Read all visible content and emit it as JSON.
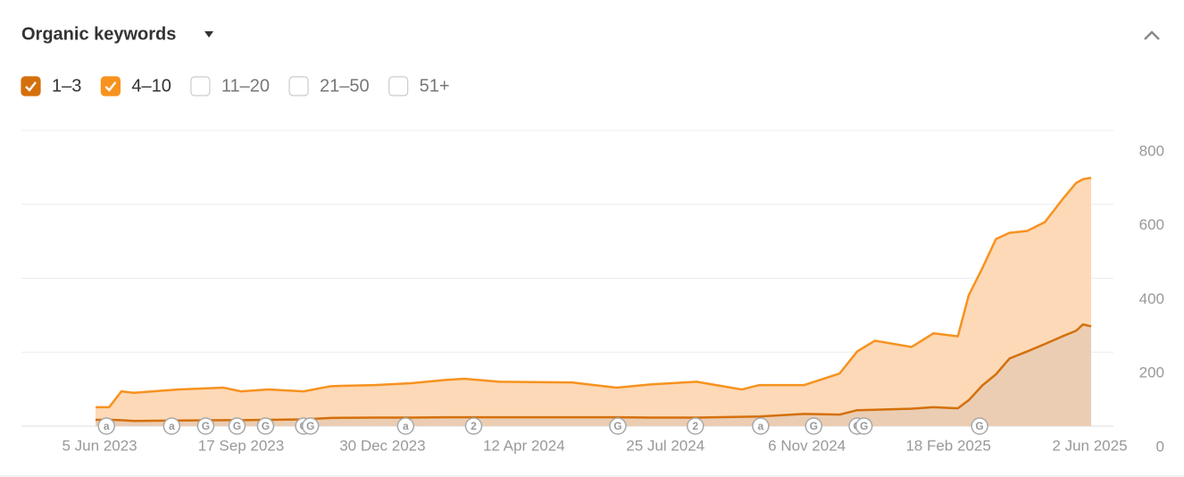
{
  "chart_data": {
    "type": "stacked_area",
    "title": "Organic keywords",
    "x": [
      "2023-06-02",
      "2023-06-12",
      "2023-06-21",
      "2023-06-30",
      "2023-08-02",
      "2023-09-04",
      "2023-09-17",
      "2023-10-07",
      "2023-11-02",
      "2023-11-22",
      "2023-12-24",
      "2024-01-20",
      "2024-02-15",
      "2024-02-28",
      "2024-03-25",
      "2024-05-17",
      "2024-06-19",
      "2024-07-15",
      "2024-08-17",
      "2024-09-19",
      "2024-10-02",
      "2024-11-04",
      "2024-11-30",
      "2024-12-13",
      "2024-12-26",
      "2025-01-22",
      "2025-02-07",
      "2025-02-25",
      "2025-03-05",
      "2025-03-15",
      "2025-03-25",
      "2025-04-04",
      "2025-04-17",
      "2025-04-30",
      "2025-05-13",
      "2025-05-23",
      "2025-05-28",
      "2025-06-03"
    ],
    "series": [
      {
        "name": "1–3",
        "color": "#d4700c",
        "fill": "#ebcdb3",
        "values": [
          17,
          17,
          16,
          14,
          15,
          16,
          16,
          17,
          18,
          22,
          23,
          23,
          24,
          24,
          24,
          24,
          24,
          23,
          23,
          25,
          26,
          33,
          31,
          43,
          44,
          47,
          51,
          48,
          70,
          110,
          140,
          183,
          202,
          222,
          243,
          258,
          275,
          270
        ]
      },
      {
        "name": "4–10",
        "color": "#f7921f",
        "fill": "#fdd9b7",
        "values": [
          34,
          34,
          78,
          76,
          84,
          88,
          78,
          82,
          76,
          86,
          88,
          93,
          101,
          104,
          96,
          94,
          80,
          90,
          97,
          74,
          85,
          78,
          111,
          159,
          187,
          167,
          200,
          195,
          284,
          317,
          366,
          340,
          326,
          330,
          371,
          400,
          393,
          402
        ]
      }
    ],
    "inactive_series": [
      "11–20",
      "21–50",
      "51+"
    ],
    "xlim": [
      "2023-06-02",
      "2025-06-03"
    ],
    "xticks": [
      {
        "value": "2023-06-05",
        "label": "5 Jun 2023"
      },
      {
        "value": "2023-09-17",
        "label": "17 Sep 2023"
      },
      {
        "value": "2023-12-30",
        "label": "30 Dec 2023"
      },
      {
        "value": "2024-04-12",
        "label": "12 Apr 2024"
      },
      {
        "value": "2024-07-25",
        "label": "25 Jul 2024"
      },
      {
        "value": "2024-11-06",
        "label": "6 Nov 2024"
      },
      {
        "value": "2025-02-18",
        "label": "18 Feb 2025"
      },
      {
        "value": "2025-06-02",
        "label": "2 Jun 2025"
      }
    ],
    "ylim": [
      0,
      800
    ],
    "yticks": [
      0,
      200,
      400,
      600,
      800
    ],
    "grid": true,
    "events": [
      {
        "x": "2023-06-10",
        "label": "a"
      },
      {
        "x": "2023-07-28",
        "label": "a"
      },
      {
        "x": "2023-08-22",
        "label": "G"
      },
      {
        "x": "2023-09-14",
        "label": "G"
      },
      {
        "x": "2023-10-05",
        "label": "G"
      },
      {
        "x": "2023-11-02",
        "label": "G"
      },
      {
        "x": "2023-11-07",
        "label": "G"
      },
      {
        "x": "2024-01-16",
        "label": "a"
      },
      {
        "x": "2024-03-06",
        "label": "2"
      },
      {
        "x": "2024-06-20",
        "label": "G"
      },
      {
        "x": "2024-08-16",
        "label": "2"
      },
      {
        "x": "2024-10-03",
        "label": "a"
      },
      {
        "x": "2024-11-11",
        "label": "G"
      },
      {
        "x": "2024-12-13",
        "label": "G"
      },
      {
        "x": "2024-12-18",
        "label": "G"
      },
      {
        "x": "2025-03-13",
        "label": "G"
      }
    ]
  }
}
